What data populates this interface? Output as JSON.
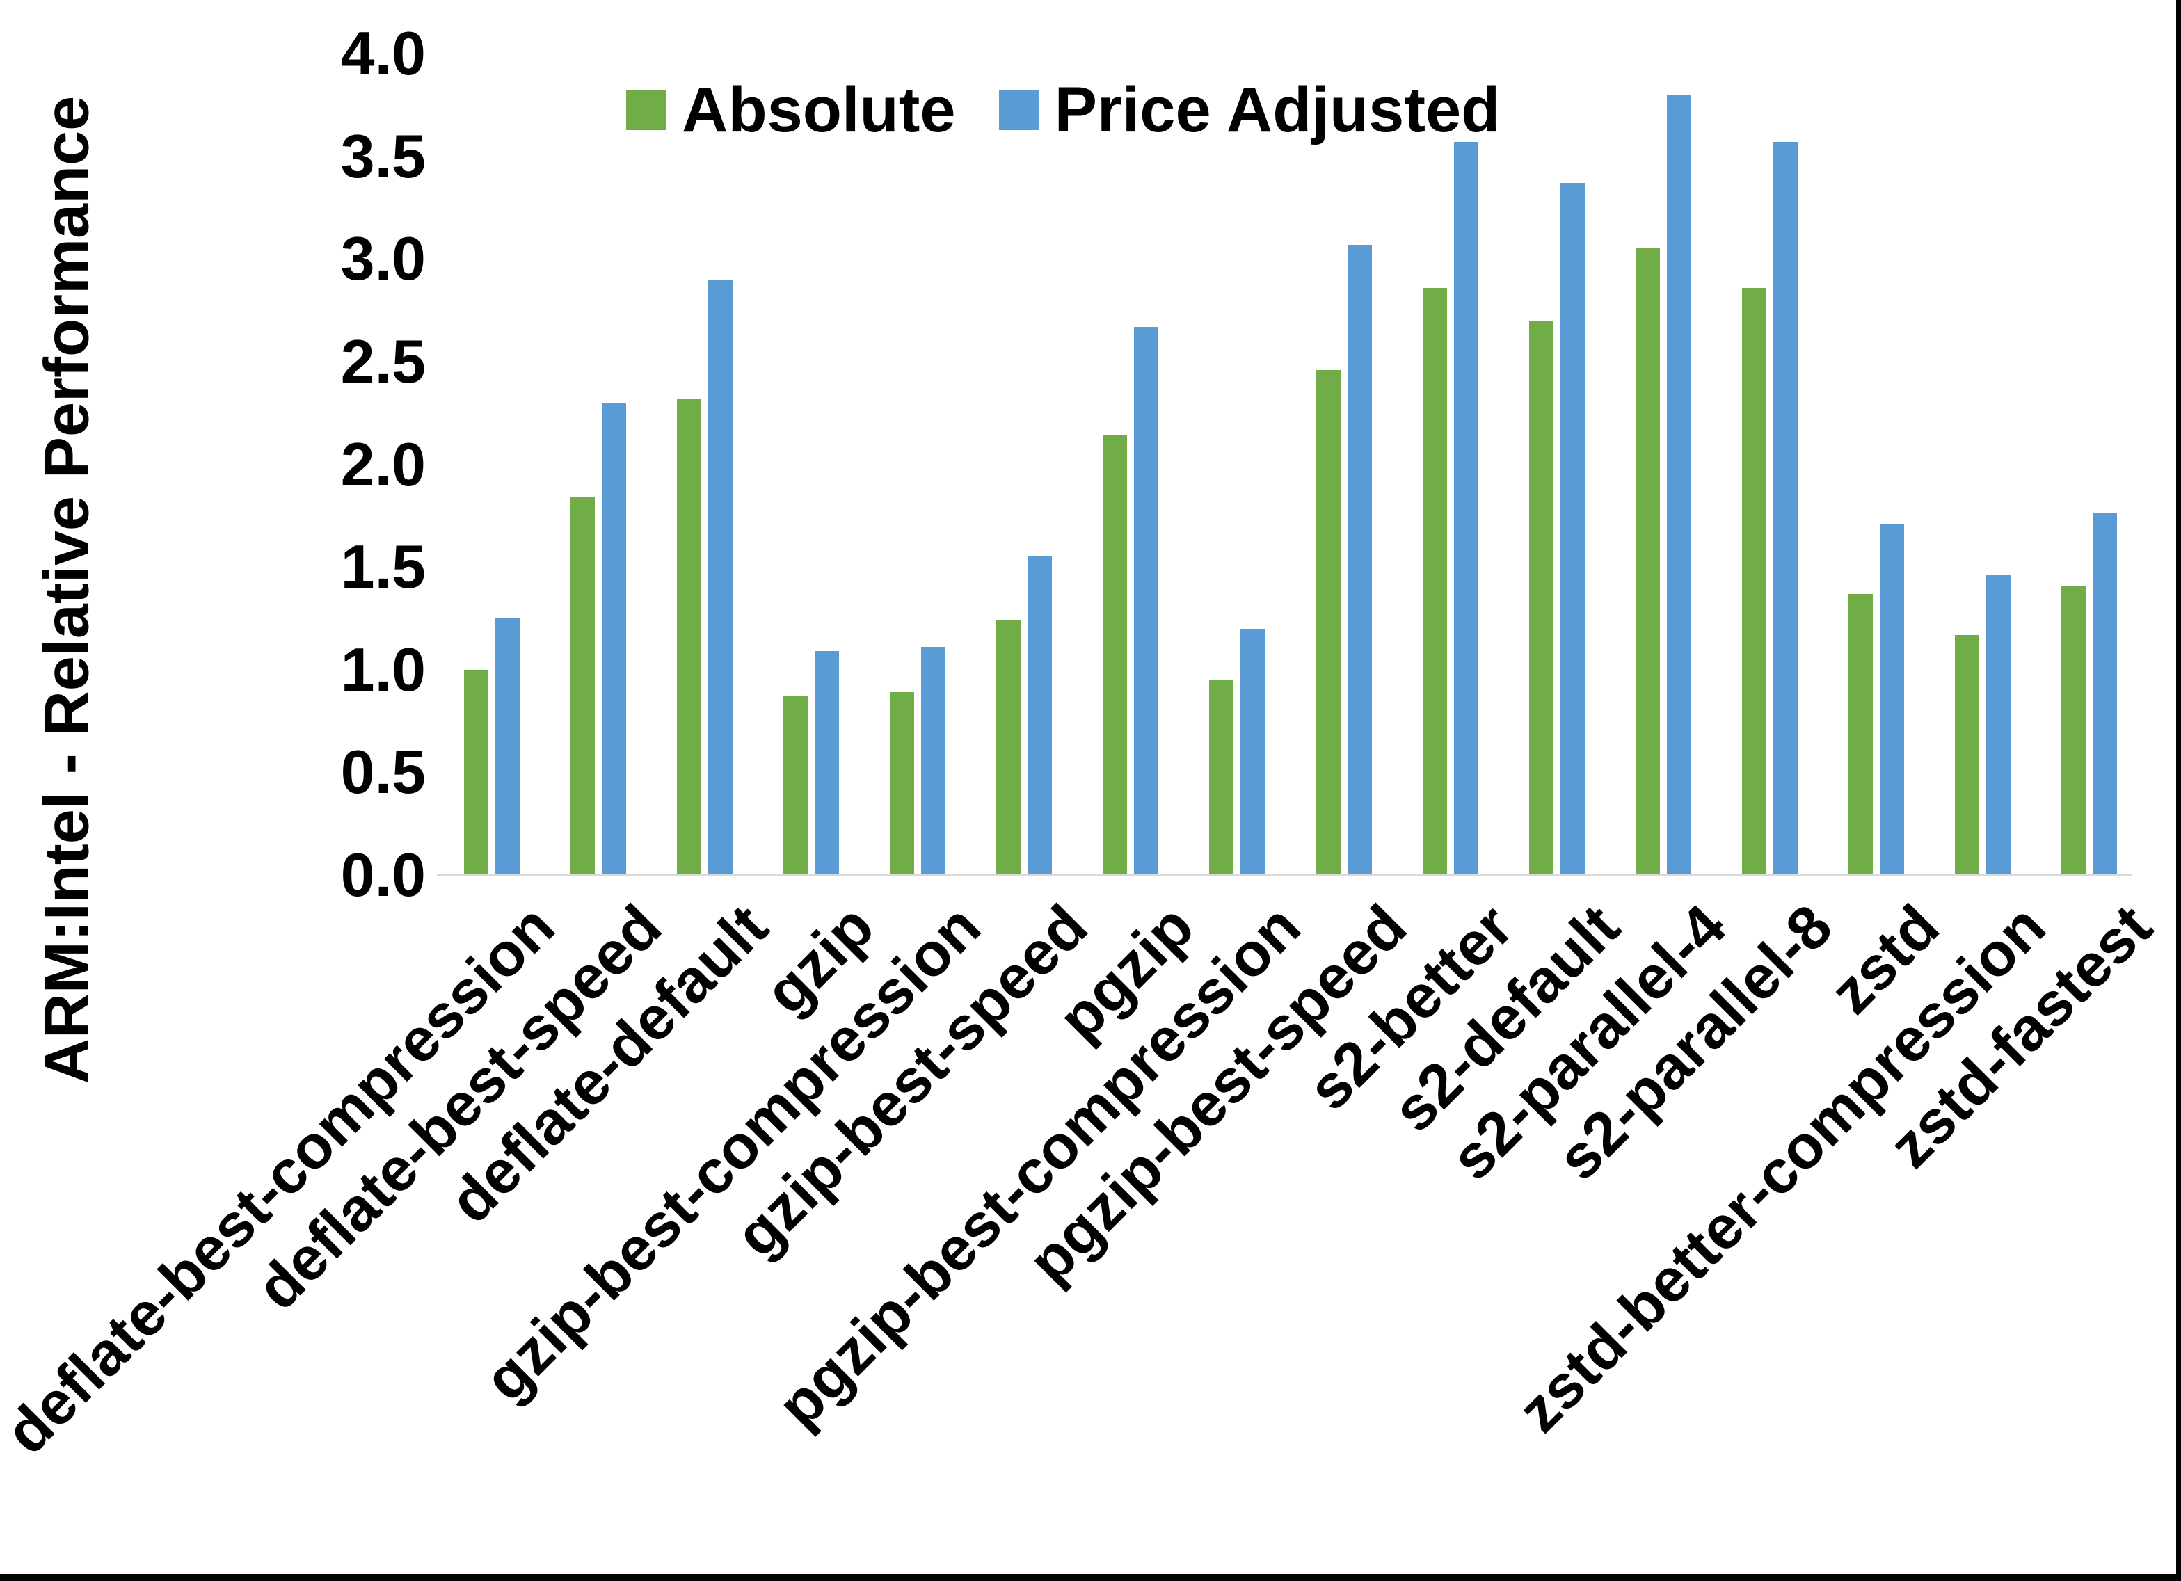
{
  "figure": {
    "background": "#ffffff",
    "frame_color": "#000000",
    "axis_line_color": "#d9d9d9"
  },
  "chart_data": {
    "type": "bar",
    "title": "",
    "xlabel": "",
    "ylabel": "ARM:Intel - Relative Performance",
    "ylim": [
      0.0,
      4.0
    ],
    "ytick_step": 0.5,
    "y_ticks": [
      "0.0",
      "0.5",
      "1.0",
      "1.5",
      "2.0",
      "2.5",
      "3.0",
      "3.5",
      "4.0"
    ],
    "grid": false,
    "legend_position": "top-center",
    "categories": [
      "deflate-best-compression",
      "deflate-best-speed",
      "deflate-default",
      "gzip",
      "gzip-best-compression",
      "gzip-best-speed",
      "pgzip",
      "pgzip-best-compression",
      "pgzip-best-speed",
      "s2-better",
      "s2-default",
      "s2-parallel-4",
      "s2-parallel-8",
      "zstd",
      "zstd-better-compression",
      "zstd-fastest"
    ],
    "series": [
      {
        "name": "Absolute",
        "color": "#70AD47",
        "values": [
          1.0,
          1.84,
          2.32,
          0.87,
          0.89,
          1.24,
          2.14,
          0.95,
          2.46,
          2.86,
          2.7,
          3.05,
          2.86,
          1.37,
          1.17,
          1.41
        ]
      },
      {
        "name": "Price Adjusted",
        "color": "#5B9BD5",
        "values": [
          1.25,
          2.3,
          2.9,
          1.09,
          1.11,
          1.55,
          2.67,
          1.2,
          3.07,
          3.57,
          3.37,
          3.8,
          3.57,
          1.71,
          1.46,
          1.76
        ]
      }
    ]
  }
}
